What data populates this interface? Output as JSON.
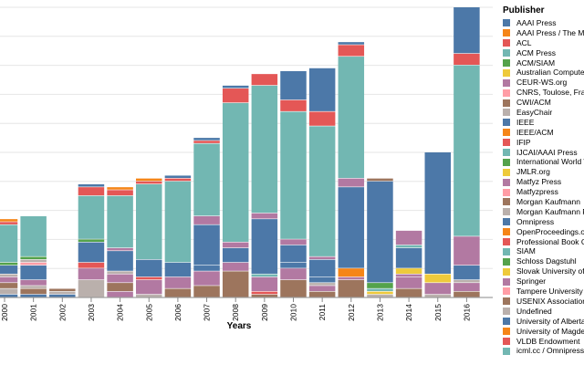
{
  "chart_data": {
    "type": "bar",
    "stacked": true,
    "title": "",
    "xlabel": "Years",
    "ylabel": "",
    "ylim": [
      0,
      100
    ],
    "grid": true,
    "legend_title": "Publisher",
    "legend_position": "right",
    "categories": [
      "2000",
      "2001",
      "2002",
      "2003",
      "2004",
      "2005",
      "2006",
      "2007",
      "2008",
      "2009",
      "2010",
      "2011",
      "2012",
      "2013",
      "2014",
      "2015",
      "2016"
    ],
    "publishers": [
      {
        "name": "AAAI Press",
        "color": "#4c78a8"
      },
      {
        "name": "AAAI Press / The MIT Press",
        "color": "#f58518"
      },
      {
        "name": "ACL",
        "color": "#e45756"
      },
      {
        "name": "ACM Press",
        "color": "#72b7b2"
      },
      {
        "name": "ACM/SIAM",
        "color": "#54a24b"
      },
      {
        "name": "Australian Computer Society",
        "color": "#eeca3b"
      },
      {
        "name": "CEUR-WS.org",
        "color": "#b279a2"
      },
      {
        "name": "CNRS, Toulose, France",
        "color": "#ff9da6"
      },
      {
        "name": "CWI/ACM",
        "color": "#9d755d"
      },
      {
        "name": "EasyChair",
        "color": "#bab0ac"
      },
      {
        "name": "IEEE",
        "color": "#4c78a8"
      },
      {
        "name": "IEEE/ACM",
        "color": "#f58518"
      },
      {
        "name": "IFIP",
        "color": "#e45756"
      },
      {
        "name": "IJCAI/AAAI Press",
        "color": "#72b7b2"
      },
      {
        "name": "International World Wide Web Conferences Steering Committee",
        "color": "#54a24b"
      },
      {
        "name": "JMLR.org",
        "color": "#eeca3b"
      },
      {
        "name": "Matfyz Press",
        "color": "#b279a2"
      },
      {
        "name": "Matfyzpress",
        "color": "#ff9da6"
      },
      {
        "name": "Morgan Kaufmann",
        "color": "#9d755d"
      },
      {
        "name": "Morgan Kaufmann Publishers",
        "color": "#bab0ac"
      },
      {
        "name": "Omnipress",
        "color": "#4c78a8"
      },
      {
        "name": "OpenProceedings.org",
        "color": "#f58518"
      },
      {
        "name": "Professional Book Center",
        "color": "#e45756"
      },
      {
        "name": "SIAM",
        "color": "#72b7b2"
      },
      {
        "name": "Schloss Dagstuhl",
        "color": "#54a24b"
      },
      {
        "name": "Slovak University of Technology",
        "color": "#eeca3b"
      },
      {
        "name": "Springer",
        "color": "#b279a2"
      },
      {
        "name": "Tampere University of Technology",
        "color": "#ff9da6"
      },
      {
        "name": "USENIX Association",
        "color": "#9d755d"
      },
      {
        "name": "Undefined",
        "color": "#bab0ac"
      },
      {
        "name": "University of Alberta",
        "color": "#4c78a8"
      },
      {
        "name": "University of Magdeburg",
        "color": "#f58518"
      },
      {
        "name": "VLDB Endowment",
        "color": "#e45756"
      },
      {
        "name": "icml.cc / Omnipress",
        "color": "#72b7b2"
      }
    ],
    "stacks": [
      [
        {
          "c": "#4c78a8",
          "v": 1
        },
        {
          "c": "#bab0ac",
          "v": 2
        },
        {
          "c": "#9d755d",
          "v": 2
        },
        {
          "c": "#b279a2",
          "v": 2
        },
        {
          "c": "#bab0ac",
          "v": 1
        },
        {
          "c": "#4c78a8",
          "v": 3
        },
        {
          "c": "#54a24b",
          "v": 1
        },
        {
          "c": "#72b7b2",
          "v": 13
        },
        {
          "c": "#e45756",
          "v": 1
        },
        {
          "c": "#f58518",
          "v": 1
        }
      ],
      [
        {
          "c": "#4c78a8",
          "v": 1
        },
        {
          "c": "#9d755d",
          "v": 2
        },
        {
          "c": "#bab0ac",
          "v": 1
        },
        {
          "c": "#b279a2",
          "v": 2
        },
        {
          "c": "#4c78a8",
          "v": 5
        },
        {
          "c": "#ff9da6",
          "v": 1
        },
        {
          "c": "#bab0ac",
          "v": 1
        },
        {
          "c": "#54a24b",
          "v": 1
        },
        {
          "c": "#72b7b2",
          "v": 14
        }
      ],
      [
        {
          "c": "#4c78a8",
          "v": 1
        },
        {
          "c": "#bab0ac",
          "v": 1
        },
        {
          "c": "#9d755d",
          "v": 1
        }
      ],
      [
        {
          "c": "#bab0ac",
          "v": 6
        },
        {
          "c": "#b279a2",
          "v": 4
        },
        {
          "c": "#e45756",
          "v": 2
        },
        {
          "c": "#4c78a8",
          "v": 7
        },
        {
          "c": "#54a24b",
          "v": 1
        },
        {
          "c": "#72b7b2",
          "v": 15
        },
        {
          "c": "#e45756",
          "v": 3
        },
        {
          "c": "#4c78a8",
          "v": 1
        }
      ],
      [
        {
          "c": "#b279a2",
          "v": 2
        },
        {
          "c": "#9d755d",
          "v": 3
        },
        {
          "c": "#b279a2",
          "v": 3
        },
        {
          "c": "#bab0ac",
          "v": 1
        },
        {
          "c": "#4c78a8",
          "v": 7
        },
        {
          "c": "#b279a2",
          "v": 1
        },
        {
          "c": "#72b7b2",
          "v": 18
        },
        {
          "c": "#e45756",
          "v": 2
        },
        {
          "c": "#f58518",
          "v": 1
        }
      ],
      [
        {
          "c": "#bab0ac",
          "v": 1
        },
        {
          "c": "#b279a2",
          "v": 5
        },
        {
          "c": "#e45756",
          "v": 1
        },
        {
          "c": "#4c78a8",
          "v": 6
        },
        {
          "c": "#72b7b2",
          "v": 26
        },
        {
          "c": "#e45756",
          "v": 1
        },
        {
          "c": "#f58518",
          "v": 1
        }
      ],
      [
        {
          "c": "#9d755d",
          "v": 3
        },
        {
          "c": "#b279a2",
          "v": 4
        },
        {
          "c": "#4c78a8",
          "v": 5
        },
        {
          "c": "#72b7b2",
          "v": 28
        },
        {
          "c": "#e45756",
          "v": 1
        },
        {
          "c": "#4c78a8",
          "v": 1
        }
      ],
      [
        {
          "c": "#9d755d",
          "v": 4
        },
        {
          "c": "#b279a2",
          "v": 5
        },
        {
          "c": "#4c78a8",
          "v": 2
        },
        {
          "c": "#4c78a8",
          "v": 14
        },
        {
          "c": "#b279a2",
          "v": 3
        },
        {
          "c": "#72b7b2",
          "v": 25
        },
        {
          "c": "#e45756",
          "v": 1
        },
        {
          "c": "#4c78a8",
          "v": 1
        }
      ],
      [
        {
          "c": "#9d755d",
          "v": 9
        },
        {
          "c": "#b279a2",
          "v": 3
        },
        {
          "c": "#4c78a8",
          "v": 5
        },
        {
          "c": "#b279a2",
          "v": 2
        },
        {
          "c": "#72b7b2",
          "v": 48
        },
        {
          "c": "#e45756",
          "v": 5
        },
        {
          "c": "#4c78a8",
          "v": 1
        }
      ],
      [
        {
          "c": "#9d755d",
          "v": 1
        },
        {
          "c": "#e45756",
          "v": 1
        },
        {
          "c": "#b279a2",
          "v": 5
        },
        {
          "c": "#72b7b2",
          "v": 1
        },
        {
          "c": "#4c78a8",
          "v": 19
        },
        {
          "c": "#b279a2",
          "v": 2
        },
        {
          "c": "#72b7b2",
          "v": 44
        },
        {
          "c": "#e45756",
          "v": 4
        }
      ],
      [
        {
          "c": "#9d755d",
          "v": 6
        },
        {
          "c": "#b279a2",
          "v": 4
        },
        {
          "c": "#4c78a8",
          "v": 2
        },
        {
          "c": "#4c78a8",
          "v": 6
        },
        {
          "c": "#b279a2",
          "v": 2
        },
        {
          "c": "#72b7b2",
          "v": 44
        },
        {
          "c": "#e45756",
          "v": 4
        },
        {
          "c": "#4c78a8",
          "v": 10
        }
      ],
      [
        {
          "c": "#9d755d",
          "v": 2
        },
        {
          "c": "#b279a2",
          "v": 2
        },
        {
          "c": "#bab0ac",
          "v": 1
        },
        {
          "c": "#4c78a8",
          "v": 2
        },
        {
          "c": "#4c78a8",
          "v": 6
        },
        {
          "c": "#b279a2",
          "v": 1
        },
        {
          "c": "#72b7b2",
          "v": 45
        },
        {
          "c": "#e45756",
          "v": 5
        },
        {
          "c": "#4c78a8",
          "v": 15
        }
      ],
      [
        {
          "c": "#9d755d",
          "v": 6
        },
        {
          "c": "#b279a2",
          "v": 1
        },
        {
          "c": "#f58518",
          "v": 3
        },
        {
          "c": "#4c78a8",
          "v": 28
        },
        {
          "c": "#b279a2",
          "v": 3
        },
        {
          "c": "#72b7b2",
          "v": 42
        },
        {
          "c": "#e45756",
          "v": 4
        },
        {
          "c": "#4c78a8",
          "v": 1
        }
      ],
      [
        {
          "c": "#bab0ac",
          "v": 1
        },
        {
          "c": "#eeca3b",
          "v": 1
        },
        {
          "c": "#72b7b2",
          "v": 1
        },
        {
          "c": "#54a24b",
          "v": 2
        },
        {
          "c": "#4c78a8",
          "v": 35
        },
        {
          "c": "#9d755d",
          "v": 1
        }
      ],
      [
        {
          "c": "#9d755d",
          "v": 3
        },
        {
          "c": "#b279a2",
          "v": 4
        },
        {
          "c": "#b279a2",
          "v": 1
        },
        {
          "c": "#eeca3b",
          "v": 2
        },
        {
          "c": "#4c78a8",
          "v": 7
        },
        {
          "c": "#72b7b2",
          "v": 1
        },
        {
          "c": "#b279a2",
          "v": 5
        }
      ],
      [
        {
          "c": "#bab0ac",
          "v": 1
        },
        {
          "c": "#b279a2",
          "v": 4
        },
        {
          "c": "#eeca3b",
          "v": 3
        },
        {
          "c": "#4c78a8",
          "v": 42
        }
      ],
      [
        {
          "c": "#9d755d",
          "v": 2
        },
        {
          "c": "#b279a2",
          "v": 3
        },
        {
          "c": "#bab0ac",
          "v": 1
        },
        {
          "c": "#4c78a8",
          "v": 5
        },
        {
          "c": "#b279a2",
          "v": 10
        },
        {
          "c": "#72b7b2",
          "v": 59
        },
        {
          "c": "#e45756",
          "v": 4
        },
        {
          "c": "#4c78a8",
          "v": 16
        }
      ]
    ]
  }
}
